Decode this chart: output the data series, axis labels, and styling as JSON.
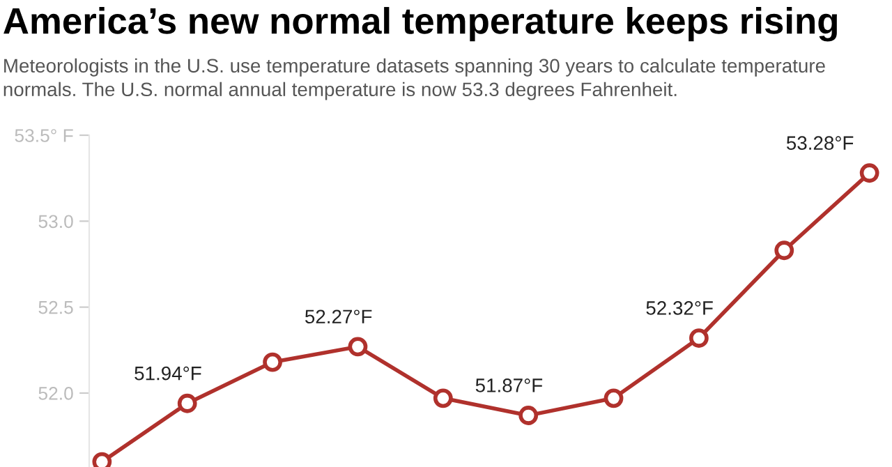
{
  "chart_data": {
    "type": "line",
    "title": "America’s new normal temperature keeps rising",
    "subtitle": "Meteorologists in the U.S. use temperature datasets spanning 30 years to calculate temperature normals. The U.S. normal annual temperature is now 53.3 degrees Fahrenheit.",
    "categories": [
      null,
      null,
      null,
      null,
      null,
      null,
      null,
      null,
      null,
      null
    ],
    "series": [
      {
        "color": "#b0312c",
        "values": [
          51.6,
          51.94,
          52.18,
          52.27,
          51.97,
          51.87,
          51.97,
          52.32,
          52.83,
          53.28
        ],
        "value_labels": [
          null,
          "51.94°F",
          null,
          "52.27°F",
          null,
          "51.87°F",
          null,
          "52.32°F",
          null,
          "53.28°F"
        ]
      }
    ],
    "ylim": [
      51.57,
      53.5
    ],
    "yticks": [
      {
        "value": 52,
        "label": "52.0"
      },
      52.5,
      {
        "value": 53,
        "label": "53.0"
      },
      {
        "value": 53.5,
        "label": "53.5° F"
      }
    ],
    "marker": "circle",
    "line_style": "solid",
    "grid": false
  }
}
